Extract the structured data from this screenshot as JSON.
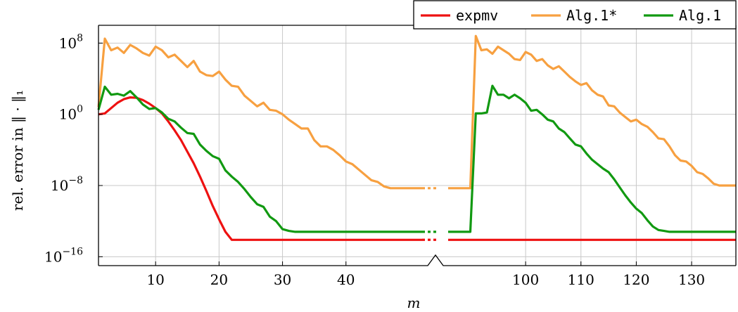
{
  "chart_data": {
    "type": "line",
    "xlabel": "m",
    "ylabel": "rel. error in ‖ · ‖₁",
    "yscale": "log",
    "ylim_exponents": [
      -17,
      10
    ],
    "x_segments": [
      {
        "range": [
          1,
          52
        ],
        "ticks": [
          10,
          20,
          30,
          40
        ]
      },
      {
        "range": [
          86,
          138
        ],
        "ticks": [
          100,
          110,
          120,
          130
        ]
      }
    ],
    "y_ticks": [
      {
        "exp": 8,
        "label_base": "10",
        "label_exp": "8"
      },
      {
        "exp": 0,
        "label_base": "10",
        "label_exp": "0"
      },
      {
        "exp": -8,
        "label_base": "10",
        "label_exp": "−8"
      },
      {
        "exp": -16,
        "label_base": "10",
        "label_exp": "−16"
      }
    ],
    "grid": true,
    "legend": {
      "placement": "top-right",
      "entries": [
        "expmv",
        "Alg.1*",
        "Alg.1"
      ]
    },
    "series": [
      {
        "name": "expmv",
        "color": "#ee1111",
        "log10_values": [
          [
            [
              1,
              0.0
            ],
            [
              2,
              0.1
            ],
            [
              3,
              0.7
            ],
            [
              4,
              1.3
            ],
            [
              5,
              1.7
            ],
            [
              6,
              1.9
            ],
            [
              7,
              1.85
            ],
            [
              8,
              1.6
            ],
            [
              9,
              1.2
            ],
            [
              10,
              0.7
            ],
            [
              11,
              0.1
            ],
            [
              12,
              -0.8
            ],
            [
              13,
              -1.8
            ],
            [
              14,
              -2.9
            ],
            [
              15,
              -4.2
            ],
            [
              16,
              -5.5
            ],
            [
              17,
              -7.0
            ],
            [
              18,
              -8.6
            ],
            [
              19,
              -10.3
            ],
            [
              20,
              -11.8
            ],
            [
              21,
              -13.2
            ],
            [
              22,
              -14.1
            ],
            [
              30,
              -14.1
            ],
            [
              40,
              -14.1
            ],
            [
              50,
              -14.1
            ],
            [
              52,
              -14.1
            ]
          ],
          [
            [
              86,
              -14.1
            ],
            [
              100,
              -14.1
            ],
            [
              110,
              -14.1
            ],
            [
              120,
              -14.1
            ],
            [
              130,
              -14.1
            ],
            [
              136,
              -14.1
            ],
            [
              138,
              -14.1
            ]
          ]
        ]
      },
      {
        "name": "Alg.1*",
        "color": "#f7a040",
        "log10_values": [
          [
            [
              1,
              0.8
            ],
            [
              2,
              8.5
            ],
            [
              3,
              7.2
            ],
            [
              4,
              7.5
            ],
            [
              5,
              6.9
            ],
            [
              6,
              7.8
            ],
            [
              7,
              7.4
            ],
            [
              8,
              6.9
            ],
            [
              9,
              6.6
            ],
            [
              10,
              7.6
            ],
            [
              11,
              7.2
            ],
            [
              12,
              6.4
            ],
            [
              13,
              6.7
            ],
            [
              14,
              6.0
            ],
            [
              15,
              5.3
            ],
            [
              16,
              6.0
            ],
            [
              17,
              4.8
            ],
            [
              18,
              4.4
            ],
            [
              19,
              4.3
            ],
            [
              20,
              4.8
            ],
            [
              21,
              3.9
            ],
            [
              22,
              3.2
            ],
            [
              23,
              3.1
            ],
            [
              24,
              2.1
            ],
            [
              25,
              1.5
            ],
            [
              26,
              0.9
            ],
            [
              27,
              1.3
            ],
            [
              28,
              0.5
            ],
            [
              29,
              0.4
            ],
            [
              30,
              0.0
            ],
            [
              31,
              -0.6
            ],
            [
              32,
              -1.1
            ],
            [
              33,
              -1.6
            ],
            [
              34,
              -1.6
            ],
            [
              35,
              -2.9
            ],
            [
              36,
              -3.6
            ],
            [
              37,
              -3.6
            ],
            [
              38,
              -4.0
            ],
            [
              39,
              -4.6
            ],
            [
              40,
              -5.3
            ],
            [
              41,
              -5.6
            ],
            [
              42,
              -6.2
            ],
            [
              43,
              -6.8
            ],
            [
              44,
              -7.4
            ],
            [
              45,
              -7.6
            ],
            [
              46,
              -8.1
            ],
            [
              47,
              -8.3
            ],
            [
              48,
              -8.3
            ],
            [
              50,
              -8.3
            ],
            [
              52,
              -8.3
            ]
          ],
          [
            [
              86,
              -8.3
            ],
            [
              89,
              -8.3
            ],
            [
              90,
              -8.3
            ],
            [
              91,
              8.8
            ],
            [
              92,
              7.2
            ],
            [
              93,
              7.3
            ],
            [
              94,
              6.8
            ],
            [
              95,
              7.6
            ],
            [
              96,
              7.2
            ],
            [
              97,
              6.8
            ],
            [
              98,
              6.2
            ],
            [
              99,
              6.1
            ],
            [
              100,
              7.0
            ],
            [
              101,
              6.7
            ],
            [
              102,
              6.0
            ],
            [
              103,
              6.2
            ],
            [
              104,
              5.5
            ],
            [
              105,
              5.1
            ],
            [
              106,
              5.4
            ],
            [
              107,
              4.8
            ],
            [
              108,
              4.2
            ],
            [
              109,
              3.7
            ],
            [
              110,
              3.3
            ],
            [
              111,
              3.5
            ],
            [
              112,
              2.7
            ],
            [
              113,
              2.2
            ],
            [
              114,
              2.0
            ],
            [
              115,
              1.0
            ],
            [
              116,
              0.9
            ],
            [
              117,
              0.2
            ],
            [
              118,
              -0.3
            ],
            [
              119,
              -0.8
            ],
            [
              120,
              -0.6
            ],
            [
              121,
              -1.1
            ],
            [
              122,
              -1.4
            ],
            [
              123,
              -2.0
            ],
            [
              124,
              -2.7
            ],
            [
              125,
              -2.8
            ],
            [
              126,
              -3.6
            ],
            [
              127,
              -4.6
            ],
            [
              128,
              -5.2
            ],
            [
              129,
              -5.3
            ],
            [
              130,
              -5.8
            ],
            [
              131,
              -6.5
            ],
            [
              132,
              -6.7
            ],
            [
              133,
              -7.2
            ],
            [
              134,
              -7.8
            ],
            [
              135,
              -8.0
            ],
            [
              136,
              -8.0
            ],
            [
              138,
              -8.0
            ]
          ]
        ]
      },
      {
        "name": "Alg.1",
        "color": "#119911",
        "log10_values": [
          [
            [
              1,
              0.5
            ],
            [
              2,
              3.1
            ],
            [
              3,
              2.2
            ],
            [
              4,
              2.3
            ],
            [
              5,
              2.1
            ],
            [
              6,
              2.6
            ],
            [
              7,
              1.9
            ],
            [
              8,
              1.1
            ],
            [
              9,
              0.6
            ],
            [
              10,
              0.7
            ],
            [
              11,
              0.2
            ],
            [
              12,
              -0.5
            ],
            [
              13,
              -0.8
            ],
            [
              14,
              -1.5
            ],
            [
              15,
              -2.1
            ],
            [
              16,
              -2.2
            ],
            [
              17,
              -3.4
            ],
            [
              18,
              -4.1
            ],
            [
              19,
              -4.7
            ],
            [
              20,
              -5.0
            ],
            [
              21,
              -6.3
            ],
            [
              22,
              -7.0
            ],
            [
              23,
              -7.6
            ],
            [
              24,
              -8.4
            ],
            [
              25,
              -9.3
            ],
            [
              26,
              -10.1
            ],
            [
              27,
              -10.4
            ],
            [
              28,
              -11.5
            ],
            [
              29,
              -12.0
            ],
            [
              30,
              -12.9
            ],
            [
              31,
              -13.1
            ],
            [
              32,
              -13.2
            ],
            [
              35,
              -13.2
            ],
            [
              40,
              -13.2
            ],
            [
              50,
              -13.2
            ],
            [
              52,
              -13.2
            ]
          ],
          [
            [
              86,
              -13.2
            ],
            [
              89,
              -13.2
            ],
            [
              90,
              -13.2
            ],
            [
              91,
              0.1
            ],
            [
              92,
              0.1
            ],
            [
              93,
              0.2
            ],
            [
              94,
              3.2
            ],
            [
              95,
              2.2
            ],
            [
              96,
              2.2
            ],
            [
              97,
              1.8
            ],
            [
              98,
              2.2
            ],
            [
              99,
              1.8
            ],
            [
              100,
              1.3
            ],
            [
              101,
              0.4
            ],
            [
              102,
              0.5
            ],
            [
              103,
              0.0
            ],
            [
              104,
              -0.6
            ],
            [
              105,
              -0.8
            ],
            [
              106,
              -1.6
            ],
            [
              107,
              -2.0
            ],
            [
              108,
              -2.7
            ],
            [
              109,
              -3.4
            ],
            [
              110,
              -3.6
            ],
            [
              111,
              -4.4
            ],
            [
              112,
              -5.1
            ],
            [
              113,
              -5.6
            ],
            [
              114,
              -6.1
            ],
            [
              115,
              -6.5
            ],
            [
              116,
              -7.3
            ],
            [
              117,
              -8.2
            ],
            [
              118,
              -9.1
            ],
            [
              119,
              -9.9
            ],
            [
              120,
              -10.6
            ],
            [
              121,
              -11.1
            ],
            [
              122,
              -11.9
            ],
            [
              123,
              -12.6
            ],
            [
              124,
              -13.0
            ],
            [
              125,
              -13.1
            ],
            [
              126,
              -13.2
            ],
            [
              130,
              -13.2
            ],
            [
              136,
              -13.2
            ],
            [
              138,
              -13.2
            ]
          ]
        ]
      }
    ]
  }
}
